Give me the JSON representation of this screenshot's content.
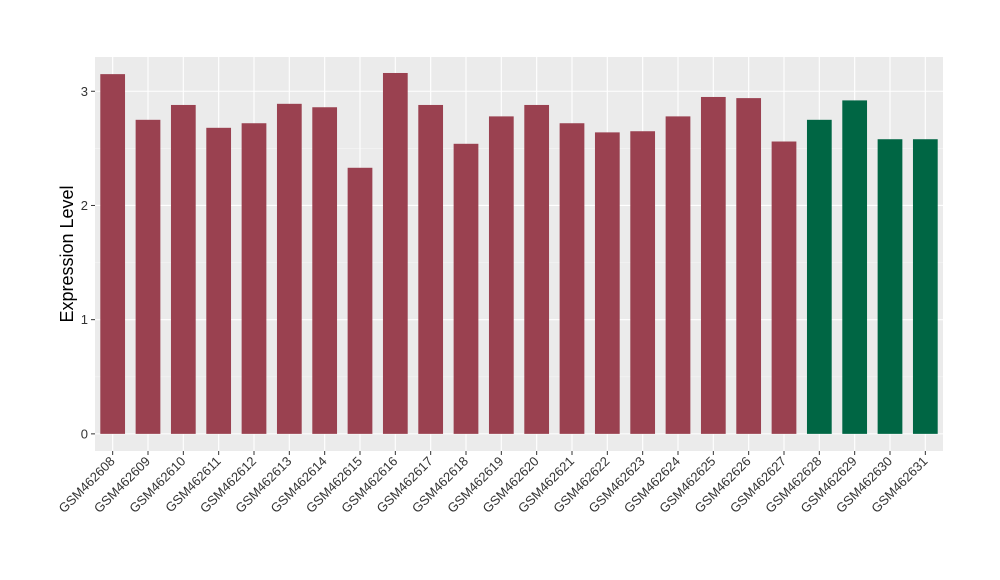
{
  "chart_data": {
    "type": "bar",
    "title": "",
    "xlabel": "",
    "ylabel": "Expression Level",
    "ylim": [
      -0.15,
      3.3
    ],
    "yticks": [
      0,
      1,
      2,
      3
    ],
    "grid": true,
    "legend": "none",
    "background": "#EBEBEB",
    "categories": [
      "GSM462608",
      "GSM462609",
      "GSM462610",
      "GSM462611",
      "GSM462612",
      "GSM462613",
      "GSM462614",
      "GSM462615",
      "GSM462616",
      "GSM462617",
      "GSM462618",
      "GSM462619",
      "GSM462620",
      "GSM462621",
      "GSM462622",
      "GSM462623",
      "GSM462624",
      "GSM462625",
      "GSM462626",
      "GSM462627",
      "GSM462628",
      "GSM462629",
      "GSM462630",
      "GSM462631"
    ],
    "values": [
      3.15,
      2.75,
      2.88,
      2.68,
      2.72,
      2.89,
      2.86,
      2.33,
      3.16,
      2.88,
      2.54,
      2.78,
      2.88,
      2.72,
      2.64,
      2.65,
      2.78,
      2.95,
      2.94,
      2.56,
      2.75,
      2.92,
      2.58,
      2.58
    ],
    "groups": [
      "a",
      "a",
      "a",
      "a",
      "a",
      "a",
      "a",
      "a",
      "a",
      "a",
      "a",
      "a",
      "a",
      "a",
      "a",
      "a",
      "a",
      "a",
      "a",
      "a",
      "b",
      "b",
      "b",
      "b"
    ],
    "colors": {
      "a": "#9A4150",
      "b": "#006644"
    }
  }
}
